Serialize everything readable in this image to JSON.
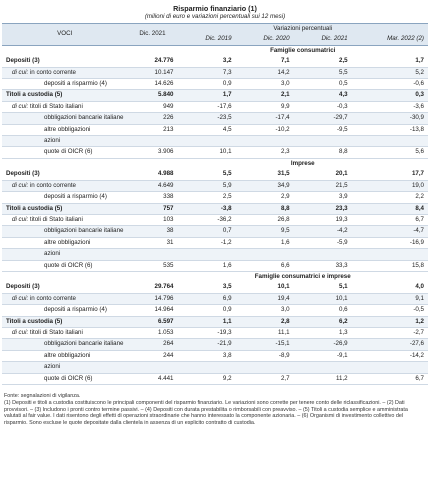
{
  "title": "Risparmio finanziario (1)",
  "subtitle": "(milioni di euro e variazioni percentuali sui 12 mesi)",
  "header": {
    "voci": "VOCI",
    "dic2021": "Dic. 2021",
    "variazioni": "Variazioni percentuali",
    "periods": [
      "Dic. 2019",
      "Dic. 2020",
      "Dic. 2021",
      "Mar. 2022 (2)"
    ]
  },
  "sections": [
    {
      "label": "Famiglie consumatrici",
      "rows": [
        {
          "label": "Depositi (3)",
          "prefix": "",
          "value": "24.776",
          "v": [
            "3,2",
            "7,1",
            "2,5",
            "1,7"
          ]
        },
        {
          "label": "in conto corrente",
          "prefix": "di cui:",
          "value": "10.147",
          "v": [
            "7,3",
            "14,2",
            "5,5",
            "5,2"
          ]
        },
        {
          "label": "depositi a risparmio (4)",
          "prefix": "",
          "value": "14.626",
          "v": [
            "0,9",
            "3,0",
            "0,5",
            "-0,6"
          ]
        },
        {
          "label": "Titoli a custodia (5)",
          "prefix": "",
          "value": "5.840",
          "v": [
            "1,7",
            "2,1",
            "4,3",
            "0,3"
          ]
        },
        {
          "label": "titoli di Stato italiani",
          "prefix": "di cui:",
          "value": "949",
          "v": [
            "-17,6",
            "9,9",
            "-0,3",
            "-3,6"
          ]
        },
        {
          "label": "obbligazioni bancarie italiane",
          "prefix": "",
          "value": "226",
          "v": [
            "-23,5",
            "-17,4",
            "-29,7",
            "-30,9"
          ]
        },
        {
          "label": "altre obbligazioni",
          "prefix": "",
          "value": "213",
          "v": [
            "4,5",
            "-10,2",
            "-9,5",
            "-13,8"
          ]
        },
        {
          "label": "azioni",
          "prefix": "",
          "value": "",
          "v": [
            "",
            "",
            "",
            ""
          ]
        },
        {
          "label": "quote di OICR (6)",
          "prefix": "",
          "value": "3.906",
          "v": [
            "10,1",
            "2,3",
            "8,8",
            "5,6"
          ]
        }
      ]
    },
    {
      "label": "Imprese",
      "rows": [
        {
          "label": "Depositi (3)",
          "prefix": "",
          "value": "4.988",
          "v": [
            "5,5",
            "31,5",
            "20,1",
            "17,7"
          ]
        },
        {
          "label": "in conto corrente",
          "prefix": "di cui:",
          "value": "4.649",
          "v": [
            "5,9",
            "34,9",
            "21,5",
            "19,0"
          ]
        },
        {
          "label": "depositi a risparmio (4)",
          "prefix": "",
          "value": "338",
          "v": [
            "2,5",
            "2,9",
            "3,9",
            "2,2"
          ]
        },
        {
          "label": "Titoli a custodia (5)",
          "prefix": "",
          "value": "757",
          "v": [
            "-3,8",
            "8,8",
            "23,3",
            "8,4"
          ]
        },
        {
          "label": "titoli di Stato italiani",
          "prefix": "di cui:",
          "value": "103",
          "v": [
            "-36,2",
            "26,8",
            "19,3",
            "6,7"
          ]
        },
        {
          "label": "obbligazioni bancarie italiane",
          "prefix": "",
          "value": "38",
          "v": [
            "0,7",
            "9,5",
            "-4,2",
            "-4,7"
          ]
        },
        {
          "label": "altre obbligazioni",
          "prefix": "",
          "value": "31",
          "v": [
            "-1,2",
            "1,6",
            "-5,9",
            "-16,9"
          ]
        },
        {
          "label": "azioni",
          "prefix": "",
          "value": "",
          "v": [
            "",
            "",
            "",
            ""
          ]
        },
        {
          "label": "quote di OICR (6)",
          "prefix": "",
          "value": "535",
          "v": [
            "1,6",
            "6,6",
            "33,3",
            "15,8"
          ]
        }
      ]
    },
    {
      "label": "Famiglie consumatrici e imprese",
      "rows": [
        {
          "label": "Depositi (3)",
          "prefix": "",
          "value": "29.764",
          "v": [
            "3,5",
            "10,1",
            "5,1",
            "4,0"
          ]
        },
        {
          "label": "in conto corrente",
          "prefix": "di cui:",
          "value": "14.796",
          "v": [
            "6,9",
            "19,4",
            "10,1",
            "9,1"
          ]
        },
        {
          "label": "depositi a risparmio (4)",
          "prefix": "",
          "value": "14.964",
          "v": [
            "0,9",
            "3,0",
            "0,6",
            "-0,5"
          ]
        },
        {
          "label": "Titoli a custodia (5)",
          "prefix": "",
          "value": "6.597",
          "v": [
            "1,1",
            "2,8",
            "6,2",
            "1,2"
          ]
        },
        {
          "label": "titoli di Stato italiani",
          "prefix": "di cui:",
          "value": "1.053",
          "v": [
            "-19,3",
            "11,1",
            "1,3",
            "-2,7"
          ]
        },
        {
          "label": "obbligazioni bancarie italiane",
          "prefix": "",
          "value": "264",
          "v": [
            "-21,9",
            "-15,1",
            "-26,9",
            "-27,6"
          ]
        },
        {
          "label": "altre obbligazioni",
          "prefix": "",
          "value": "244",
          "v": [
            "3,8",
            "-8,9",
            "-9,1",
            "-14,2"
          ]
        },
        {
          "label": "azioni",
          "prefix": "",
          "value": "",
          "v": [
            "",
            "",
            "",
            ""
          ]
        },
        {
          "label": "quote di OICR (6)",
          "prefix": "",
          "value": "4.441",
          "v": [
            "9,2",
            "2,7",
            "11,2",
            "6,7"
          ]
        }
      ]
    }
  ],
  "notes": [
    "Fonte: segnalazioni di vigilanza.",
    "(1) Depositi e titoli a custodia costituiscono le principali componenti del risparmio finanziario. Le variazioni sono corrette per tenere conto delle riclassificazioni. – (2) Dati provvisori. – (3) Includono i pronti contro termine passivi. – (4) Depositi con durata prestabilita o rimborsabili con preavviso. – (5) Titoli a custodia semplice e amministrata valutati al fair value. I dati risentono degli effetti di operazioni straordinarie che hanno interessato la componente azionaria. – (6) Organismi di investimento collettivo del risparmio. Sono escluse le quote depositate dalla clientela in assenza di un esplicito contratto di custodia."
  ]
}
